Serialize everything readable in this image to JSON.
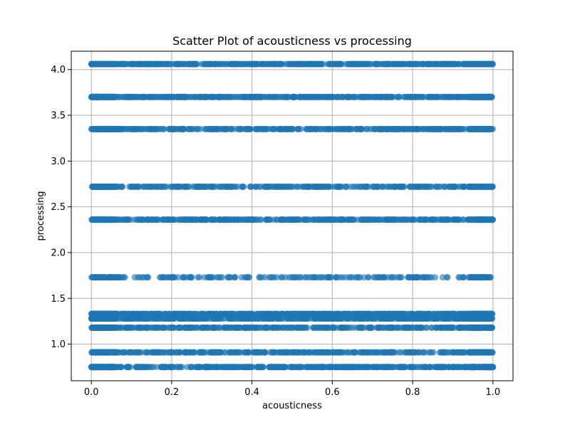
{
  "chart_data": {
    "type": "scatter",
    "title": "Scatter Plot of acousticness vs processing",
    "xlabel": "acousticness",
    "ylabel": "processing",
    "xlim": [
      -0.05,
      1.05
    ],
    "ylim": [
      0.6,
      4.2
    ],
    "x_ticks": [
      0.0,
      0.2,
      0.4,
      0.6,
      0.8,
      1.0
    ],
    "x_tick_labels": [
      "0.0",
      "0.2",
      "0.4",
      "0.6",
      "0.8",
      "1.0"
    ],
    "y_ticks": [
      1.0,
      1.5,
      2.0,
      2.5,
      3.0,
      3.5,
      4.0
    ],
    "y_tick_labels": [
      "1.0",
      "1.5",
      "2.0",
      "2.5",
      "3.0",
      "3.5",
      "4.0"
    ],
    "grid": true,
    "point_color": "#1f77b4",
    "point_alpha": 0.6,
    "series": [
      {
        "x_range": [
          0.0,
          1.0
        ],
        "y_levels": [
          0.75,
          0.91,
          1.18,
          1.28,
          1.33,
          1.73,
          2.36,
          2.72,
          3.35,
          3.7,
          4.06
        ],
        "level_density": [
          1.0,
          0.8,
          0.75,
          1.0,
          1.0,
          0.4,
          0.9,
          0.65,
          0.85,
          0.9,
          1.0
        ]
      }
    ]
  }
}
